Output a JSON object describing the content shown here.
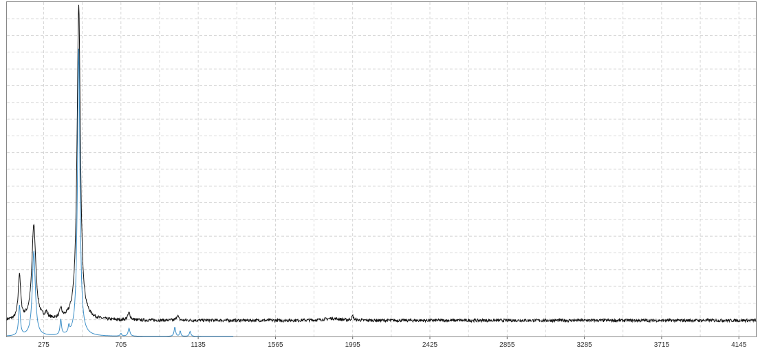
{
  "chart_data": {
    "type": "line",
    "title": "",
    "xlabel": "",
    "ylabel": "",
    "xlim": [
      70,
      4240
    ],
    "ylim": [
      0,
      100
    ],
    "grid": true,
    "x_ticks": [
      275,
      705,
      1135,
      1565,
      1995,
      2425,
      2855,
      3285,
      3715,
      4145
    ],
    "x_tick_labels": [
      "275",
      "705",
      "1135",
      "1565",
      "1995",
      "2425",
      "2855",
      "3285",
      "3715",
      "4145"
    ],
    "series": [
      {
        "color": "#111111",
        "baseline": 4.8,
        "noise": 0.45,
        "peaks": [
          {
            "x": 140,
            "height": 13.5,
            "width": 8
          },
          {
            "x": 220,
            "height": 28.5,
            "width": 13
          },
          {
            "x": 290,
            "height": 1.6,
            "width": 8
          },
          {
            "x": 370,
            "height": 2.8,
            "width": 7
          },
          {
            "x": 470,
            "height": 94.0,
            "width": 11
          },
          {
            "x": 750,
            "height": 2.2,
            "width": 8
          },
          {
            "x": 1020,
            "height": 1.6,
            "width": 6
          },
          {
            "x": 1880,
            "height": 0.6,
            "width": 50
          },
          {
            "x": 1995,
            "height": 1.3,
            "width": 6
          }
        ],
        "x_range": [
          70,
          4240
        ]
      },
      {
        "color": "#3d8fc7",
        "baseline": 0.0,
        "noise": 0.0,
        "peaks": [
          {
            "x": 140,
            "height": 9.0,
            "width": 6
          },
          {
            "x": 220,
            "height": 25.5,
            "width": 10
          },
          {
            "x": 370,
            "height": 4.6,
            "width": 5
          },
          {
            "x": 415,
            "height": 2.0,
            "width": 4
          },
          {
            "x": 470,
            "height": 86.0,
            "width": 8
          },
          {
            "x": 705,
            "height": 0.8,
            "width": 5
          },
          {
            "x": 750,
            "height": 2.4,
            "width": 6
          },
          {
            "x": 1005,
            "height": 2.8,
            "width": 5
          },
          {
            "x": 1035,
            "height": 1.6,
            "width": 4
          },
          {
            "x": 1090,
            "height": 1.5,
            "width": 5
          }
        ],
        "x_range": [
          70,
          1330
        ]
      }
    ]
  }
}
